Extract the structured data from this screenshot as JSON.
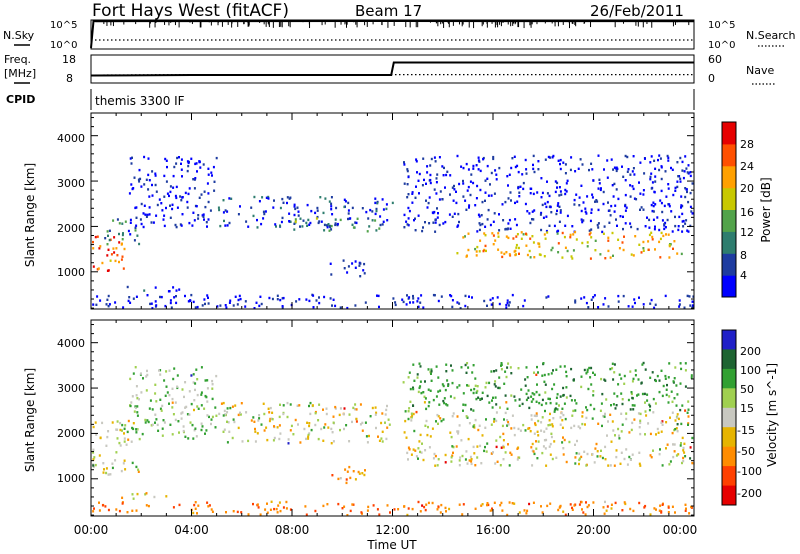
{
  "header": {
    "station": "Fort Hays West (fitACF)",
    "beam": "Beam 17",
    "date": "26/Feb/2011"
  },
  "noise_panel": {
    "left_label": "N.Sky",
    "left_ticks": [
      "10^5",
      "10^0"
    ],
    "right_label": "N.Search",
    "right_ticks": [
      "10^5",
      "10^0"
    ]
  },
  "freq_panel": {
    "left_label_1": "Freq.",
    "left_label_2": "[MHz]",
    "left_ticks": [
      "18",
      "8"
    ],
    "right_label": "Nave",
    "right_ticks": [
      "60",
      "0"
    ]
  },
  "cpid_panel": {
    "label": "CPID",
    "value": "themis 3300 IF"
  },
  "time_axis": {
    "label": "Time UT",
    "ticks": [
      "00:00",
      "04:00",
      "08:00",
      "12:00",
      "16:00",
      "20:00",
      "00:00"
    ]
  },
  "power_panel": {
    "ylabel": "Slant Range [km]",
    "yticks": [
      "1000",
      "2000",
      "3000",
      "4000"
    ],
    "colorbar_label": "Power [dB]",
    "colorbar_ticks": [
      "4",
      "8",
      "12",
      "16",
      "20",
      "24",
      "28"
    ],
    "colors": [
      "#0000ff",
      "#1e3ca0",
      "#2e7d6e",
      "#52a34a",
      "#c8c800",
      "#ffa000",
      "#ff5000",
      "#e60000"
    ]
  },
  "velocity_panel": {
    "ylabel": "Slant Range [km]",
    "yticks": [
      "1000",
      "2000",
      "3000",
      "4000"
    ],
    "colorbar_label": "Velocity [m s^-1]",
    "colorbar_ticks": [
      "200",
      "100",
      "50",
      "15",
      "-15",
      "-50",
      "-100",
      "-200"
    ],
    "colors": [
      "#2020c8",
      "#1e6432",
      "#32a032",
      "#a0d050",
      "#c8c8c0",
      "#e6b400",
      "#ff8c00",
      "#ff4000",
      "#e60000"
    ]
  },
  "chart_data": [
    {
      "type": "line",
      "title": "",
      "xlabel": "",
      "ylabel": "N.Sky",
      "xlim": [
        0,
        24
      ],
      "series": [
        {
          "name": "N.Sky",
          "x": [
            0,
            0.1,
            0.2,
            6,
            12,
            18,
            24
          ],
          "y": [
            1,
            100000,
            90000,
            95000,
            100000,
            95000,
            90000
          ]
        },
        {
          "name": "N.Search",
          "x": [
            0,
            6,
            12,
            18,
            24
          ],
          "y": [
            30,
            30,
            30,
            30,
            30
          ]
        }
      ]
    },
    {
      "type": "line",
      "title": "",
      "xlabel": "",
      "ylabel": "Freq. [MHz]",
      "xlim": [
        0,
        24
      ],
      "series": [
        {
          "name": "Freq.",
          "x": [
            0,
            4,
            8,
            11.95,
            12.05,
            16,
            20,
            24
          ],
          "y": [
            10.5,
            10.7,
            10.7,
            10.7,
            15.5,
            15.5,
            15.5,
            15.5
          ]
        },
        {
          "name": "Nave",
          "x": [
            0,
            4,
            8,
            12,
            16,
            20,
            24
          ],
          "y": [
            16,
            17,
            17,
            17,
            17,
            17,
            17
          ]
        }
      ]
    },
    {
      "type": "heatmap",
      "title": "",
      "xlabel": "Time UT",
      "ylabel": "Slant Range [km]",
      "xlim": [
        0,
        24
      ],
      "ylim": [
        180,
        4500
      ],
      "colorbar": {
        "label": "Power [dB]",
        "range": [
          2,
          30
        ]
      },
      "regions": [
        {
          "x": [
            0,
            1.5
          ],
          "y": [
            1000,
            1800
          ],
          "value": 24
        },
        {
          "x": [
            0.5,
            2
          ],
          "y": [
            1600,
            2200
          ],
          "value": 10
        },
        {
          "x": [
            1.5,
            5
          ],
          "y": [
            2000,
            3600
          ],
          "value": 4
        },
        {
          "x": [
            5,
            12
          ],
          "y": [
            2000,
            2700
          ],
          "value": 6
        },
        {
          "x": [
            8,
            11.5
          ],
          "y": [
            1900,
            2200
          ],
          "value": 12
        },
        {
          "x": [
            1,
            3.5
          ],
          "y": [
            570,
            700
          ],
          "value": 6
        },
        {
          "x": [
            9.5,
            11
          ],
          "y": [
            900,
            1300
          ],
          "value": 4
        },
        {
          "x": [
            12.4,
            24
          ],
          "y": [
            1900,
            3600
          ],
          "value": 4
        },
        {
          "x": [
            14.5,
            23.5
          ],
          "y": [
            1300,
            1900
          ],
          "value": 20
        },
        {
          "x": [
            0,
            24
          ],
          "y": [
            200,
            500
          ],
          "value": 4
        }
      ]
    },
    {
      "type": "heatmap",
      "title": "",
      "xlabel": "Time UT",
      "ylabel": "Slant Range [km]",
      "xlim": [
        0,
        24
      ],
      "ylim": [
        180,
        4500
      ],
      "colorbar": {
        "label": "Velocity [m s^-1]",
        "range": [
          -200,
          200
        ]
      },
      "regions": [
        {
          "x": [
            0,
            2
          ],
          "y": [
            1100,
            2300
          ],
          "value": 0
        },
        {
          "x": [
            1.5,
            5
          ],
          "y": [
            1900,
            3500
          ],
          "value": 30
        },
        {
          "x": [
            5,
            12
          ],
          "y": [
            1800,
            2700
          ],
          "value": 0
        },
        {
          "x": [
            1,
            3.5
          ],
          "y": [
            570,
            700
          ],
          "value": 0
        },
        {
          "x": [
            9.5,
            11
          ],
          "y": [
            900,
            1300
          ],
          "value": -40
        },
        {
          "x": [
            12.4,
            24
          ],
          "y": [
            1300,
            2500
          ],
          "value": 0
        },
        {
          "x": [
            12.4,
            24
          ],
          "y": [
            2500,
            3600
          ],
          "value": 60
        },
        {
          "x": [
            0,
            24
          ],
          "y": [
            200,
            500
          ],
          "value": -60
        }
      ]
    }
  ]
}
